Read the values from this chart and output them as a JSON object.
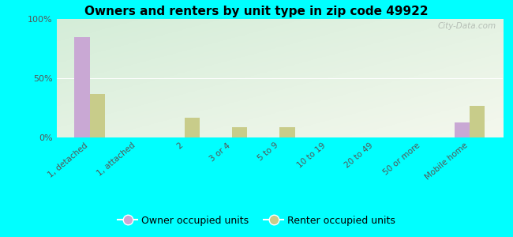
{
  "title": "Owners and renters by unit type in zip code 49922",
  "categories": [
    "1, detached",
    "1, attached",
    "2",
    "3 or 4",
    "5 to 9",
    "10 to 19",
    "20 to 49",
    "50 or more",
    "Mobile home"
  ],
  "owner_values": [
    85,
    0,
    0,
    0,
    0,
    0,
    0,
    0,
    13
  ],
  "renter_values": [
    37,
    0,
    17,
    9,
    9,
    0,
    0,
    0,
    27
  ],
  "owner_color": "#c9a8d4",
  "renter_color": "#c8cc8a",
  "bg_outer": "#00ffff",
  "ylabel_ticks": [
    "0%",
    "50%",
    "100%"
  ],
  "ytick_vals": [
    0,
    50,
    100
  ],
  "ylim": [
    0,
    100
  ],
  "bar_width": 0.32,
  "legend_owner": "Owner occupied units",
  "legend_renter": "Renter occupied units",
  "watermark": "City-Data.com",
  "grad_top_left": "#d4edd8",
  "grad_bottom_right": "#f5f8ee"
}
